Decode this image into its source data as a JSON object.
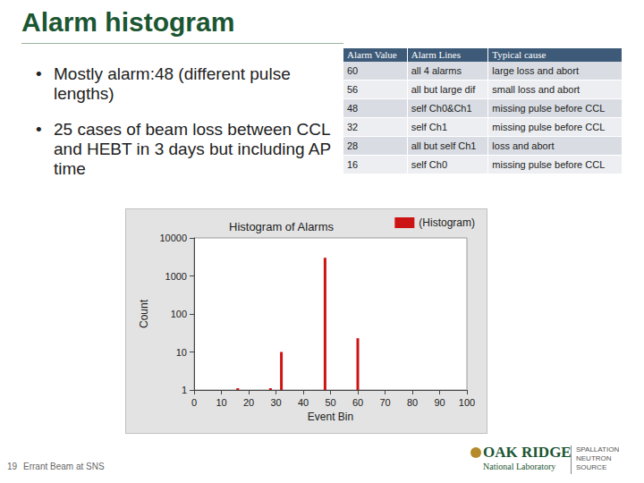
{
  "slide": {
    "title": "Alarm histogram",
    "bullets": [
      "Mostly alarm:48 (different pulse lengths)",
      "25 cases of beam loss between CCL and HEBT in 3 days but including AP time"
    ],
    "table": {
      "header": [
        "Alarm Value",
        "Alarm Lines",
        "Typical cause"
      ],
      "rows": [
        [
          "60",
          "all 4 alarms",
          "large loss and abort"
        ],
        [
          "56",
          "all but large dif",
          "small loss and abort"
        ],
        [
          "48",
          "self Ch0&Ch1",
          "missing pulse before CCL"
        ],
        [
          "32",
          "self Ch1",
          "missing pulse before CCL"
        ],
        [
          "28",
          "all but self Ch1",
          "loss and abort"
        ],
        [
          "16",
          "self Ch0",
          "missing pulse before CCL"
        ]
      ]
    },
    "footer": {
      "page": "19",
      "text": "Errant Beam at SNS"
    },
    "logo": {
      "name": "OAK RIDGE",
      "subname": "National Laboratory",
      "division": "SPALLATION NEUTRON SOURCE"
    }
  },
  "chart_data": {
    "type": "bar",
    "title": "Histogram of Alarms",
    "x_label": "Event Bin",
    "y_label": "Count",
    "series": [
      {
        "name": "(Histogram)",
        "color": "#cc1414",
        "x": [
          16,
          28,
          32,
          48,
          60
        ],
        "values": [
          1,
          1,
          10,
          3000,
          23
        ]
      }
    ],
    "xlim": [
      0,
      100
    ],
    "xticks": [
      0,
      10,
      20,
      30,
      40,
      50,
      60,
      70,
      80,
      90,
      100
    ],
    "ylim": [
      1,
      10000
    ],
    "yticks": [
      1,
      10,
      100,
      1000,
      10000
    ],
    "log": "y",
    "grid": false,
    "legend": "upper right"
  }
}
